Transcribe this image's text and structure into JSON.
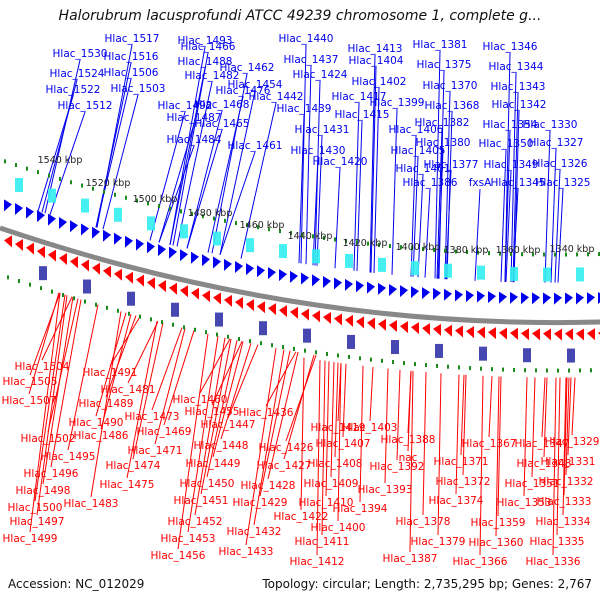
{
  "title": "Halorubrum lacusprofundi ATCC 49239 chromosome 1, complete g...",
  "footer": {
    "accession": "Accession: NC_012029",
    "summary": "Topology: circular; Length: 2,735,295 bp; Genes: 2,767"
  },
  "colors": {
    "forward_strand": "#0000ee",
    "reverse_strand": "#ff0000",
    "backbone": "#888888",
    "gc_dots": "#1a8a1a",
    "scale_text": "#222222"
  },
  "scale_ticks": [
    "1540 kbp",
    "1520 kbp",
    "1500 kbp",
    "1480 kbp",
    "1460 kbp",
    "1440 kbp",
    "1420 kbp",
    "1400 kbp",
    "1380 kbp",
    "1360 kbp",
    "1340 kbp"
  ],
  "forward_labels": [
    "Hlac_1517",
    "Hlac_1493",
    "Hlac_1466",
    "Hlac_1440",
    "Hlac_1413",
    "Hlac_1381",
    "Hlac_1346",
    "Hlac_1530",
    "Hlac_1516",
    "Hlac_1488",
    "Hlac_1462",
    "Hlac_1437",
    "Hlac_1404",
    "Hlac_1375",
    "Hlac_1344",
    "Hlac_1524",
    "Hlac_1506",
    "Hlac_1482",
    "Hlac_1454",
    "Hlac_1424",
    "Hlac_1402",
    "Hlac_1370",
    "Hlac_1343",
    "Hlac_1522",
    "Hlac_1503",
    "Hlac_1476",
    "Hlac_1442",
    "Hlac_1417",
    "Hlac_1399",
    "Hlac_1368",
    "Hlac_1342",
    "Hlac_1512",
    "Hlac_1492",
    "Hlac_1468",
    "Hlac_1439",
    "Hlac_1415",
    "Hlac_1382",
    "Hlac_1354",
    "Hlac_1330",
    "Hlac_1487",
    "Hlac_1465",
    "Hlac_1431",
    "Hlac_1406",
    "Hlac_1380",
    "Hlac_1350",
    "Hlac_1327",
    "Hlac_1484",
    "Hlac_1461",
    "Hlac_1430",
    "Hlac_1405",
    "Hlac_1377",
    "Hlac_1349",
    "Hlac_1326",
    "Hlac_1420",
    "Hlac_1401",
    "Hlac_1386",
    "fxsA",
    "Hlac_1345",
    "Hlac_1325"
  ],
  "reverse_labels": [
    "Hlac_1504",
    "Hlac_1491",
    "Hlac_1505",
    "Hlac_1481",
    "Hlac_1507",
    "Hlac_1489",
    "Hlac_1460",
    "Hlac_1473",
    "Hlac_1455",
    "Hlac_1436",
    "Hlac_1490",
    "Hlac_1469",
    "Hlac_1447",
    "Hlac_1419",
    "Hlac_1403",
    "Hlac_1502",
    "Hlac_1486",
    "Hlac_1448",
    "Hlac_1426",
    "Hlac_1407",
    "Hlac_1388",
    "Hlac_1367",
    "Hlac_1347",
    "Hlac_1329",
    "Hlac_1495",
    "Hlac_1471",
    "nac",
    "Hlac_1371",
    "Hlac_1348",
    "Hlac_1331",
    "Hlac_1496",
    "Hlac_1474",
    "Hlac_1449",
    "Hlac_1427",
    "Hlac_1408",
    "Hlac_1392",
    "Hlac_1372",
    "Hlac_1351",
    "Hlac_1332",
    "Hlac_1498",
    "Hlac_1475",
    "Hlac_1450",
    "Hlac_1428",
    "Hlac_1409",
    "Hlac_1393",
    "Hlac_1374",
    "Hlac_1353",
    "Hlac_1333",
    "Hlac_1500",
    "Hlac_1483",
    "Hlac_1451",
    "Hlac_1429",
    "Hlac_1410",
    "Hlac_1394",
    "Hlac_1378",
    "Hlac_1359",
    "Hlac_1334",
    "Hlac_1497",
    "Hlac_1452",
    "Hlac_1422",
    "Hlac_1400",
    "Hlac_1379",
    "Hlac_1360",
    "Hlac_1335",
    "Hlac_1499",
    "Hlac_1453",
    "Hlac_1432",
    "Hlac_1411",
    "Hlac_1387",
    "Hlac_1366",
    "Hlac_1336",
    "Hlac_1456",
    "Hlac_1433",
    "Hlac_1412"
  ]
}
